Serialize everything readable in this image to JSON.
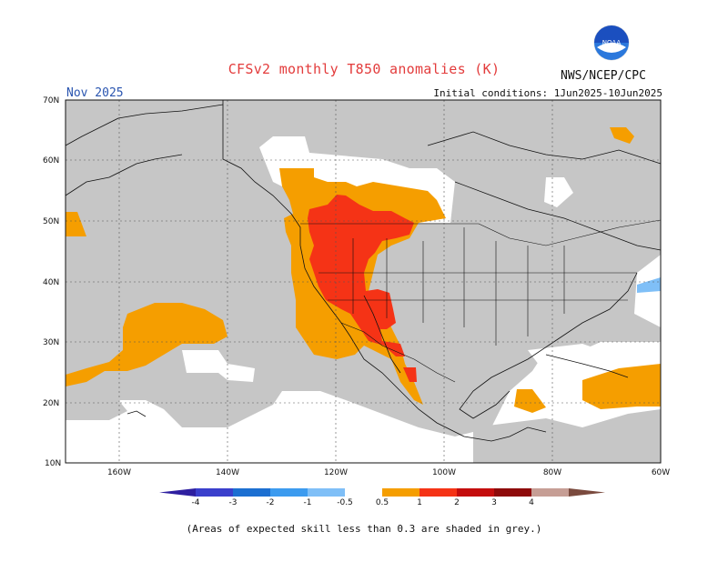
{
  "title": "CFSv2 monthly T850 anomalies (K)",
  "agency": "NWS/NCEP/CPC",
  "month": "Nov 2025",
  "initial_conditions": "Initial conditions: 1Jun2025-10Jun2025",
  "footnote": "(Areas of expected skill less than 0.3 are shaded in grey.)",
  "logo_text": "NOAA",
  "map": {
    "lon_range": [
      -170,
      -60
    ],
    "lat_range": [
      10,
      70
    ],
    "lat_ticks": [
      "70N",
      "60N",
      "50N",
      "40N",
      "30N",
      "20N",
      "10N"
    ],
    "lon_ticks": [
      "160W",
      "140W",
      "120W",
      "100W",
      "80W",
      "60W"
    ],
    "gridlines": true
  },
  "colorbar": {
    "labels": [
      "-4",
      "-3",
      "-2",
      "-1",
      "-0.5",
      "0.5",
      "1",
      "2",
      "3",
      "4"
    ],
    "colors": [
      "#2e1fa0",
      "#3a3fcc",
      "#1c6fd1",
      "#3c9bef",
      "#7fbff7",
      "#ffffff",
      "#f59e00",
      "#f53316",
      "#c40d0d",
      "#8e0a0a",
      "#c69e95",
      "#7a4a3e"
    ]
  },
  "colors": {
    "grey_low_skill": "#c6c6c6",
    "anomaly_0_5_to_1": "#f59e00",
    "anomaly_1_to_2": "#f53316",
    "anomaly_neg_0_5_to_neg_1": "#7fbff7",
    "title_color": "#e33c3c",
    "month_color": "#2a55b0"
  }
}
